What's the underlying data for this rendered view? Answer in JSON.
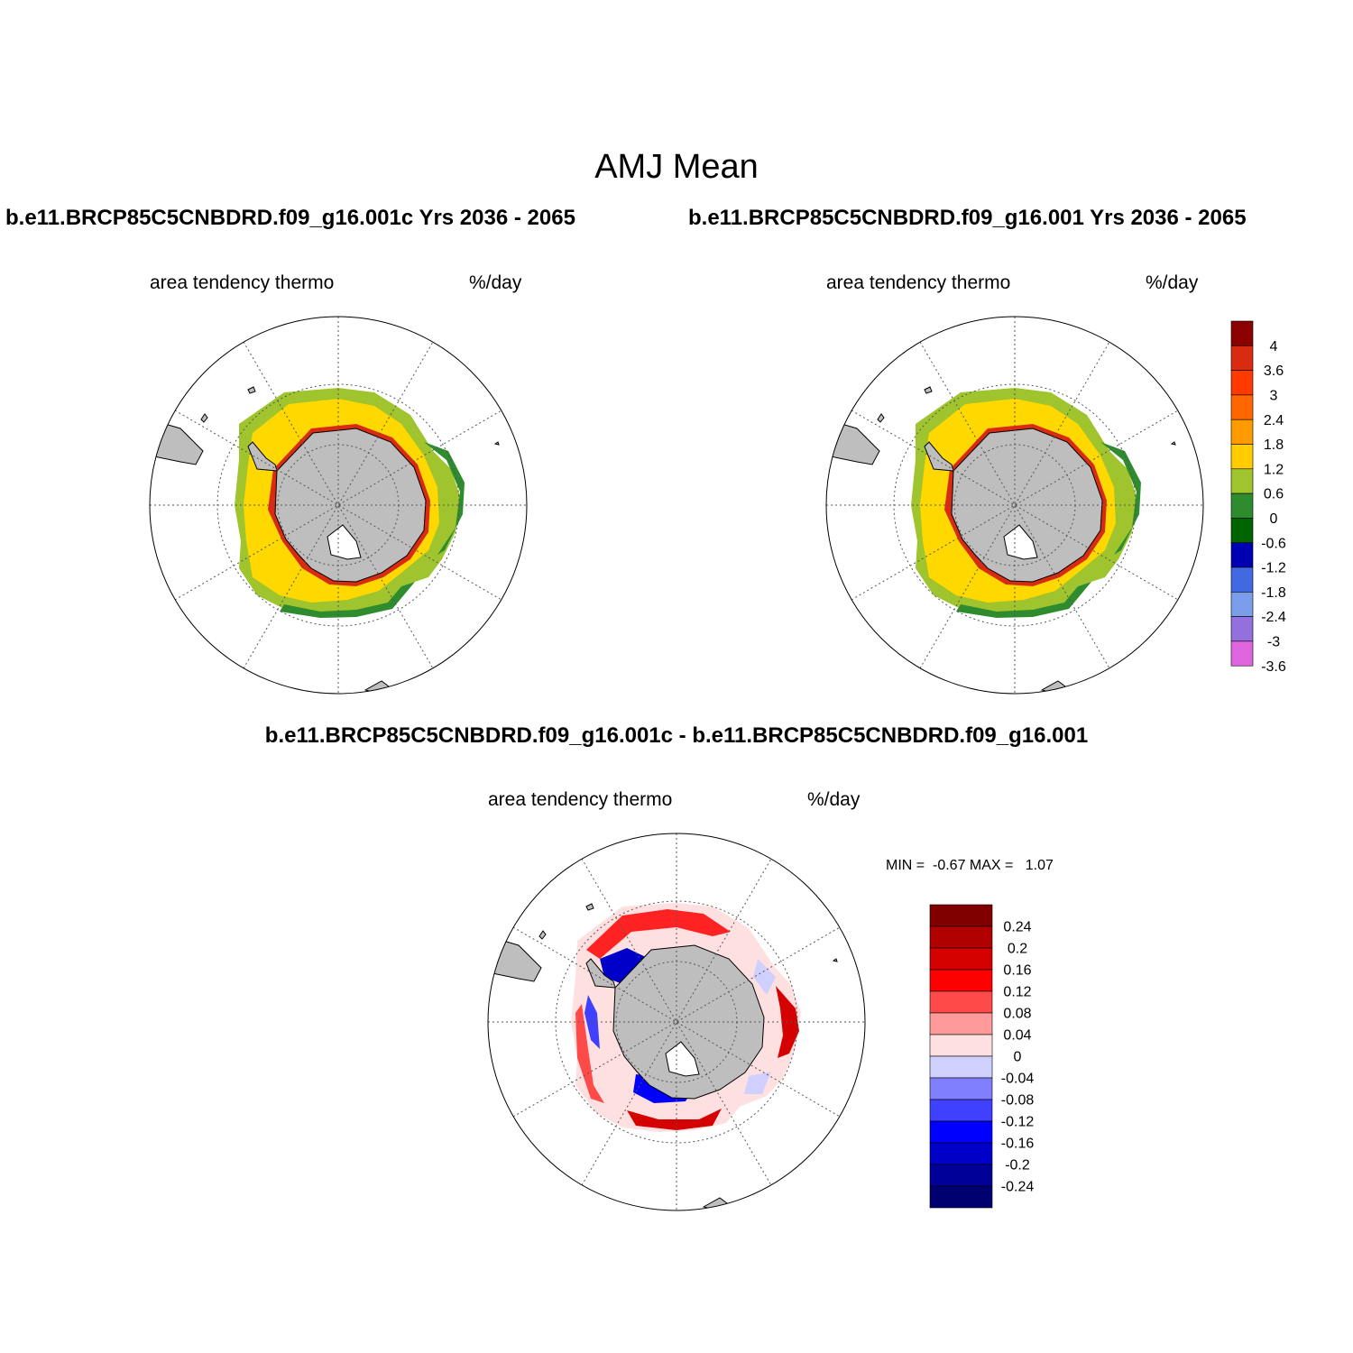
{
  "title": "AMJ Mean",
  "panels": [
    {
      "case_title": "b.e11.BRCP85C5CNBDRD.f09_g16.001c  Yrs 2036 - 2065",
      "variable": "area tendency thermo",
      "units": "%/day"
    },
    {
      "case_title": "b.e11.BRCP85C5CNBDRD.f09_g16.001  Yrs 2036 - 2065",
      "variable": "area tendency thermo",
      "units": "%/day"
    },
    {
      "case_title": "b.e11.BRCP85C5CNBDRD.f09_g16.001c - b.e11.BRCP85C5CNBDRD.f09_g16.001",
      "variable": "area tendency thermo",
      "units": "%/day",
      "min_max": "MIN =  -0.67 MAX =   1.07"
    }
  ],
  "colorbars": {
    "field": {
      "labels": [
        "4",
        "3.6",
        "3",
        "2.4",
        "1.8",
        "1.2",
        "0.6",
        "0",
        "-0.6",
        "-1.2",
        "-1.8",
        "-2.4",
        "-3",
        "-3.6"
      ],
      "colors": [
        "#8b0000",
        "#d92b12",
        "#ff3a00",
        "#ff6600",
        "#ff9a00",
        "#ffcc00",
        "#9fc42e",
        "#2e8b2e",
        "#006400",
        "#0000b3",
        "#4169e1",
        "#7b9eea",
        "#9370db",
        "#e066e0"
      ]
    },
    "difference": {
      "labels": [
        "0.24",
        "0.2",
        "0.16",
        "0.12",
        "0.08",
        "0.04",
        "0",
        "-0.04",
        "-0.08",
        "-0.12",
        "-0.16",
        "-0.2",
        "-0.24"
      ],
      "colors": [
        "#800000",
        "#b00000",
        "#d50000",
        "#ff0000",
        "#ff4a4a",
        "#ff9a9a",
        "#ffe0e0",
        "#d0d0ff",
        "#8080ff",
        "#4040ff",
        "#0000ff",
        "#0000c8",
        "#000098",
        "#000070"
      ]
    }
  },
  "map_colors": {
    "land": "#bebebe",
    "ice_shelf": "#ffffff",
    "grid": "#555555"
  }
}
